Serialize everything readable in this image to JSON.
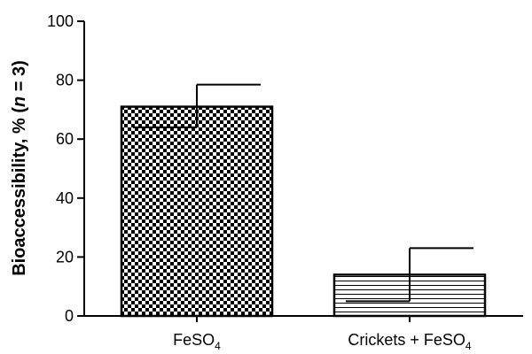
{
  "chart_data": {
    "type": "bar",
    "categories": [
      {
        "label": "FeSO",
        "subscript": "4"
      },
      {
        "label": "Crickets + FeSO",
        "subscript": "4"
      }
    ],
    "values": [
      71,
      14
    ],
    "error_upper": [
      78.5,
      23
    ],
    "error_lower": [
      64,
      5
    ],
    "patterns": [
      "checkerboard",
      "horizontal-lines"
    ],
    "ylabel": {
      "text": "Bioaccessibility, % (",
      "italic": "n",
      "rest": " = 3)"
    },
    "ylim": [
      0,
      100
    ],
    "yticks": [
      0,
      20,
      40,
      60,
      80,
      100
    ],
    "grid": false
  }
}
